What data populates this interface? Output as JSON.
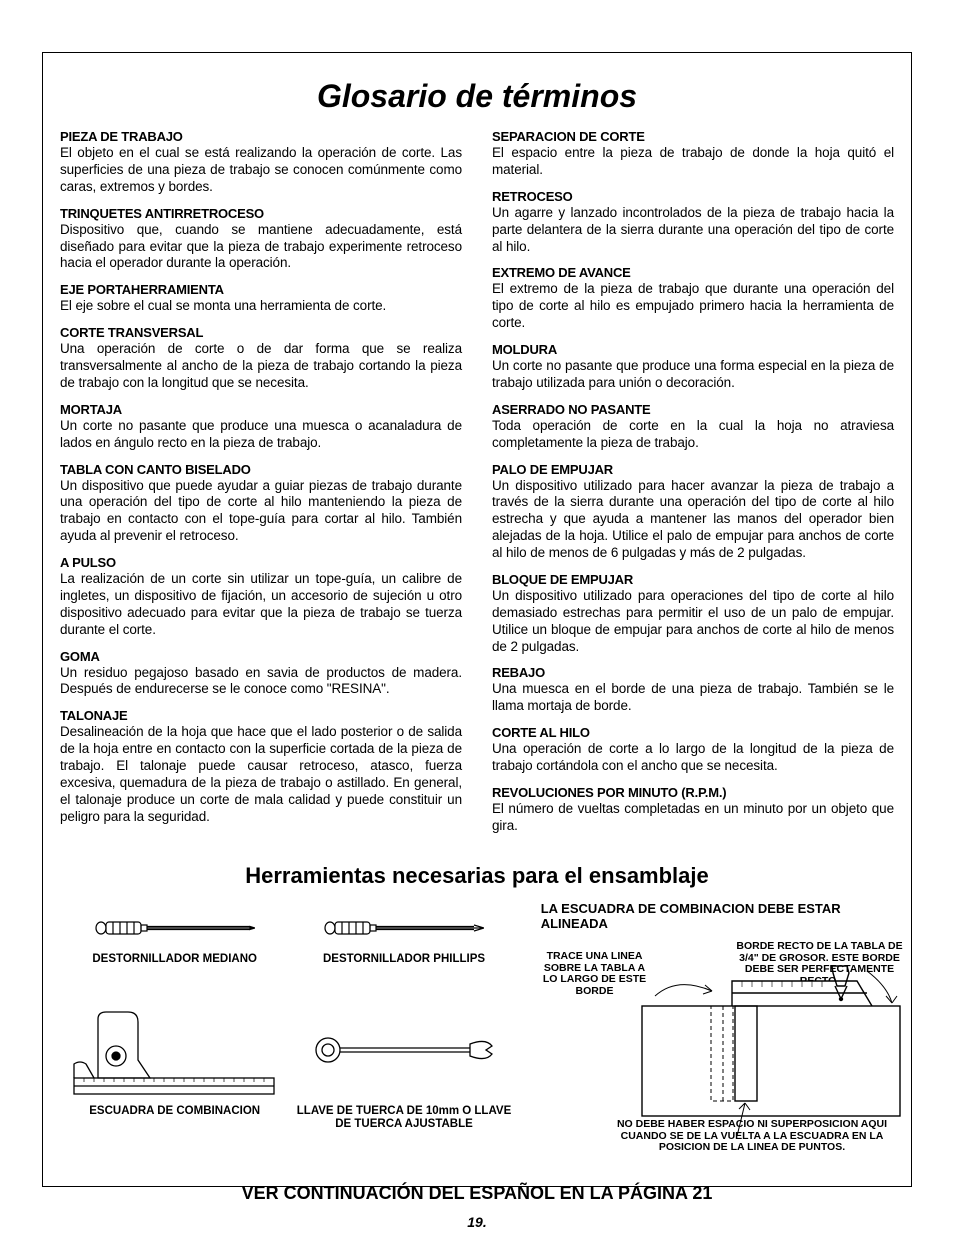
{
  "title": "Glosario de términos",
  "left_col": [
    {
      "term": "PIEZA DE TRABAJO",
      "def": "El objeto en el cual se está realizando la operación de corte. Las superficies de una pieza de trabajo se conocen comúnmente como caras, extremos y bordes."
    },
    {
      "term": "TRINQUETES ANTIRRETROCESO",
      "def": "Dispositivo que, cuando se mantiene adecuadamente, está diseñado para evitar que la pieza de trabajo experimente retroceso hacia el operador durante la operación."
    },
    {
      "term": "EJE PORTAHERRAMIENTA",
      "def": "El eje sobre el cual se monta una herramienta de corte."
    },
    {
      "term": "CORTE TRANSVERSAL",
      "def": "Una operación de corte o de dar forma que se realiza transversalmente al ancho de la pieza de trabajo cortando la pieza de trabajo con la longitud que se necesita."
    },
    {
      "term": "MORTAJA",
      "def": "Un corte no pasante que produce una muesca o acanaladura de lados en ángulo recto en la pieza de trabajo."
    },
    {
      "term": "TABLA CON CANTO BISELADO",
      "def": "Un dispositivo que puede ayudar a guiar piezas de trabajo durante una operación del tipo de corte al hilo manteniendo la pieza de trabajo en contacto con el tope-guía para cortar al hilo. También ayuda al prevenir el retroceso."
    },
    {
      "term": "A PULSO",
      "def": "La realización de un corte sin utilizar un tope-guía, un calibre de ingletes, un dispositivo de fijación, un accesorio de sujeción u otro dispositivo adecuado para evitar que la pieza de trabajo se tuerza durante el corte."
    },
    {
      "term": "GOMA",
      "def": "Un residuo pegajoso basado en savia de productos de madera. Después de endurecerse se le conoce como \"RESINA\"."
    },
    {
      "term": "TALONAJE",
      "def": "Desalineación de la hoja que hace que el lado posterior o de salida de la hoja entre en contacto con la superficie cortada de la pieza de trabajo. El talonaje puede causar retroceso, atasco, fuerza excesiva, quemadura de la pieza de trabajo o astillado. En general, el talonaje produce un corte de mala calidad y puede constituir un peligro para la seguridad."
    }
  ],
  "right_col": [
    {
      "term": "SEPARACION DE CORTE",
      "def": "El espacio entre la pieza de trabajo de donde la hoja quitó el material."
    },
    {
      "term": "RETROCESO",
      "def": "Un agarre y lanzado incontrolados de la pieza de trabajo hacia la parte delantera de la sierra durante una operación del tipo de corte al hilo."
    },
    {
      "term": "EXTREMO DE AVANCE",
      "def": "El extremo de la pieza de trabajo que durante una operación del tipo de corte al hilo es empujado primero hacia la herramienta de corte."
    },
    {
      "term": "MOLDURA",
      "def": "Un corte no pasante que produce una forma especial en la pieza de trabajo utilizada para unión o decoración."
    },
    {
      "term": "ASERRADO NO PASANTE",
      "def": "Toda operación de corte en la cual la hoja no atraviesa completamente la pieza de trabajo."
    },
    {
      "term": "PALO DE EMPUJAR",
      "def": "Un dispositivo utilizado para hacer avanzar la pieza de trabajo a través de la sierra durante una operación del tipo de corte al hilo estrecha y que ayuda a mantener las manos del operador bien alejadas de la hoja. Utilice el palo de empujar para anchos de corte al hilo de menos de 6 pulgadas y más de 2 pulgadas."
    },
    {
      "term": "BLOQUE DE EMPUJAR",
      "def": "Un dispositivo utilizado para operaciones del tipo de corte al hilo demasiado estrechas para permitir el uso de un palo de empujar. Utilice un bloque de empujar para anchos de corte al hilo de menos de 2 pulgadas."
    },
    {
      "term": "REBAJO",
      "def": "Una muesca en el borde de una pieza de trabajo. También se le llama mortaja de borde."
    },
    {
      "term": "CORTE AL HILO",
      "def": "Una operación de corte a lo largo de la longitud de la pieza de trabajo cortándola con el ancho que se necesita."
    },
    {
      "term": "REVOLUCIONES POR MINUTO (R.P.M.)",
      "def": "El número de vueltas completadas en un minuto por un objeto que gira."
    }
  ],
  "tools_heading": "Herramientas necesarias para el ensamblaje",
  "align_heading": "LA ESCUADRA DE COMBINACION DEBE ESTAR ALINEADA",
  "tool_labels": {
    "t1": "DESTORNILLADOR MEDIANO",
    "t2": "DESTORNILLADOR PHILLIPS",
    "t3": "ESCUADRA DE COMBINACION",
    "t4": "LLAVE DE TUERCA DE 10mm O LLAVE DE TUERCA AJUSTABLE"
  },
  "annotations": {
    "trace": "TRACE UNA LINEA SOBRE LA TABLA A LO LARGO DE ESTE BORDE",
    "edge": "BORDE RECTO DE LA TABLA DE 3/4\" DE GROSOR. ESTE BORDE DEBE SER PERFECTAMENTE RECTO.",
    "nogap": "NO DEBE HABER ESPACIO NI SUPERPOSICION AQUI CUANDO SE DE LA VUELTA A LA ESCUADRA EN LA POSICION DE LA LINEA DE PUNTOS."
  },
  "continue_text": "VER CONTINUACIÓN DEL ESPAÑOL EN LA PÁGINA 21",
  "page_number": "19.",
  "colors": {
    "text": "#000000",
    "bg": "#ffffff",
    "line": "#000000"
  }
}
